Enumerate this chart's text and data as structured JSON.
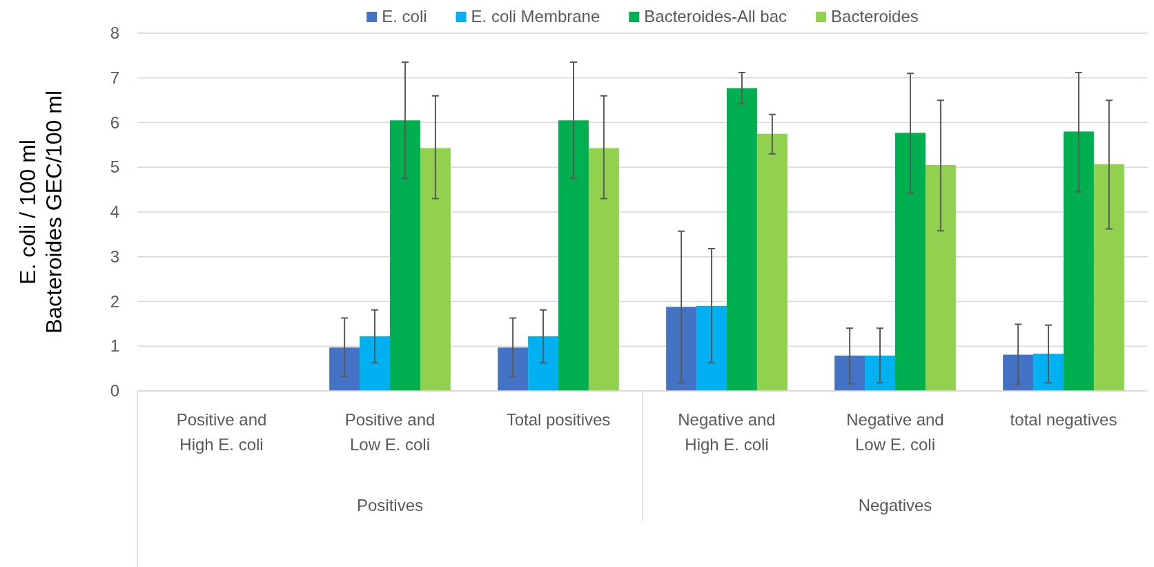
{
  "chart_data": {
    "type": "bar",
    "ylabel": "E. coli / 100 ml\nBacteroides GEC/100 ml",
    "categories": [
      "Positive and\nHigh E. coli",
      "Positive and\nLow E. coli",
      "Total positives",
      "Negative and\nHigh E. coli",
      "Negative and\nLow E. coli",
      "total negatives"
    ],
    "series": [
      {
        "name": "E. coli",
        "color": "#4472c4",
        "values": [
          null,
          0.97,
          0.97,
          1.88,
          0.79,
          0.81
        ],
        "errors": [
          null,
          [
            0.32,
            1.63
          ],
          [
            0.32,
            1.63
          ],
          [
            0.18,
            3.57
          ],
          [
            0.16,
            1.4
          ],
          [
            0.15,
            1.49
          ]
        ]
      },
      {
        "name": "E. coli Membrane",
        "color": "#00b0f0",
        "values": [
          null,
          1.22,
          1.22,
          1.9,
          0.79,
          0.83
        ],
        "errors": [
          null,
          [
            0.63,
            1.81
          ],
          [
            0.63,
            1.81
          ],
          [
            0.63,
            3.18
          ],
          [
            0.18,
            1.4
          ],
          [
            0.18,
            1.47
          ]
        ]
      },
      {
        "name": "Bacteroides-All bac",
        "color": "#00b050",
        "values": [
          null,
          6.05,
          6.05,
          6.77,
          5.77,
          5.8
        ],
        "errors": [
          null,
          [
            4.75,
            7.35
          ],
          [
            4.75,
            7.35
          ],
          [
            6.42,
            7.12
          ],
          [
            4.42,
            7.1
          ],
          [
            4.45,
            7.12
          ]
        ]
      },
      {
        "name": "Bacteroides",
        "color": "#92d050",
        "values": [
          null,
          5.43,
          5.43,
          5.75,
          5.05,
          5.07
        ],
        "errors": [
          null,
          [
            4.3,
            6.6
          ],
          [
            4.3,
            6.6
          ],
          [
            5.3,
            6.18
          ],
          [
            3.58,
            6.5
          ],
          [
            3.62,
            6.5
          ]
        ]
      }
    ],
    "ylim": [
      0,
      8
    ],
    "yticks": [
      0,
      1,
      2,
      3,
      4,
      5,
      6,
      7,
      8
    ],
    "grid": "y",
    "legend": "top",
    "annotations": [
      "Positives",
      "Negatives"
    ]
  }
}
